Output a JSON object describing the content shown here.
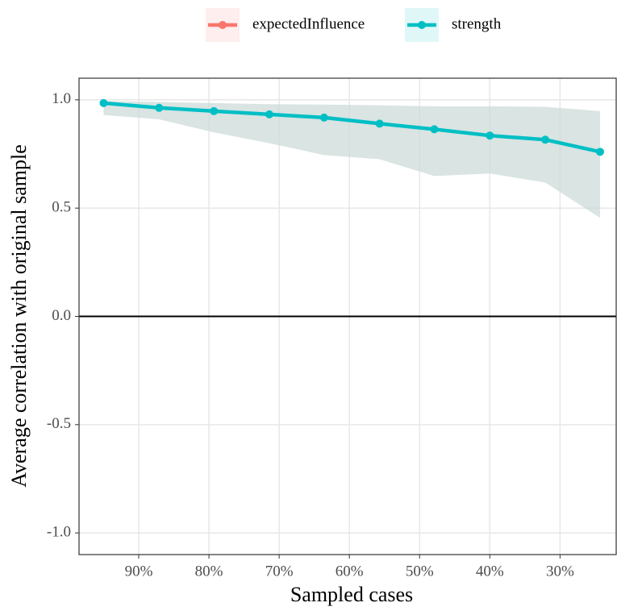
{
  "chart_data": {
    "type": "line",
    "xlabel": "Sampled cases",
    "ylabel": "Average correlation with original sample",
    "x": [
      95,
      87.1,
      79.3,
      71.4,
      63.6,
      55.7,
      47.9,
      40,
      32.1,
      24.3
    ],
    "xlim": [
      98.5,
      22
    ],
    "xticks": [
      {
        "value": 90,
        "label": "90%"
      },
      {
        "value": 80,
        "label": "80%"
      },
      {
        "value": 70,
        "label": "70%"
      },
      {
        "value": 60,
        "label": "60%"
      },
      {
        "value": 50,
        "label": "50%"
      },
      {
        "value": 40,
        "label": "40%"
      },
      {
        "value": 30,
        "label": "30%"
      }
    ],
    "ylim": [
      -1.1,
      1.1
    ],
    "yticks": [
      {
        "value": -1,
        "label": "-1.0"
      },
      -0.5,
      {
        "value": 0,
        "label": "0.0"
      },
      0.5,
      {
        "value": 1,
        "label": "1.0"
      }
    ],
    "hline": 0,
    "grid": true,
    "legend": "top",
    "series": [
      {
        "name": "expectedInfluence",
        "color": "#F8766D",
        "values": [
          null,
          null,
          null,
          null,
          null,
          null,
          null,
          null,
          null,
          null
        ]
      },
      {
        "name": "strength",
        "color": "#00BFC4",
        "band_color": "#c9d8d7",
        "values": [
          0.985,
          0.963,
          0.948,
          0.933,
          0.918,
          0.89,
          0.864,
          0.835,
          0.816,
          0.76
        ],
        "lower": [
          0.93,
          0.91,
          0.85,
          0.8,
          0.745,
          0.726,
          0.648,
          0.66,
          0.618,
          0.455
        ],
        "upper": [
          0.995,
          0.99,
          0.985,
          0.98,
          0.978,
          0.975,
          0.97,
          0.97,
          0.968,
          0.948
        ]
      }
    ]
  }
}
